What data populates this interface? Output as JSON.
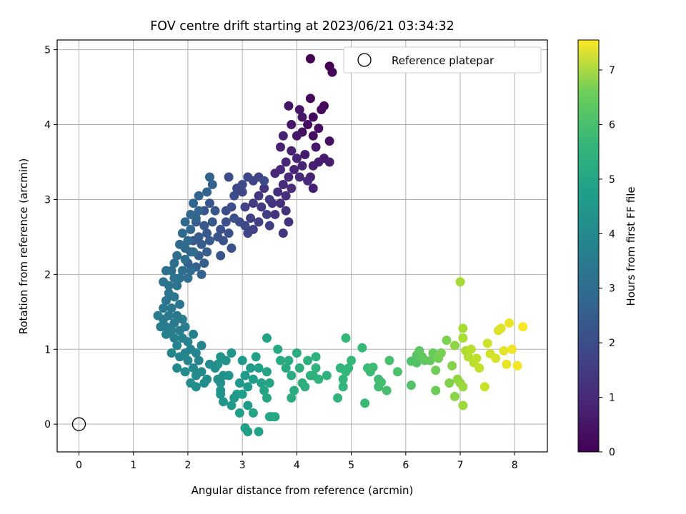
{
  "chart_data": {
    "type": "scatter",
    "title": "FOV centre drift starting at 2023/06/21 03:34:32",
    "xlabel": "Angular distance from reference (arcmin)",
    "ylabel": "Rotation from reference (arcmin)",
    "xlim": [
      -0.4,
      8.6
    ],
    "ylim": [
      -0.37,
      5.13
    ],
    "x_ticks": [
      "0",
      "1",
      "2",
      "3",
      "4",
      "5",
      "6",
      "7",
      "8"
    ],
    "y_ticks": [
      "0",
      "1",
      "2",
      "3",
      "4",
      "5"
    ],
    "grid": true,
    "legend": {
      "placement": "top-right",
      "entries": [
        "Reference platepar"
      ]
    },
    "reference_point": {
      "label": "Reference platepar",
      "x": 0,
      "y": 0
    },
    "colorbar": {
      "label": "Hours from first FF file",
      "colormap": "viridis",
      "range": [
        0,
        7.55
      ],
      "ticks": [
        "0",
        "1",
        "2",
        "3",
        "4",
        "5",
        "6",
        "7"
      ]
    },
    "points": [
      [
        4.25,
        4.88,
        0.0
      ],
      [
        4.6,
        4.78,
        0.03
      ],
      [
        4.65,
        4.7,
        0.07
      ],
      [
        4.25,
        4.35,
        0.12
      ],
      [
        4.5,
        4.25,
        0.15
      ],
      [
        4.45,
        4.2,
        0.18
      ],
      [
        4.3,
        4.1,
        0.2
      ],
      [
        4.2,
        4.0,
        0.25
      ],
      [
        4.4,
        3.95,
        0.28
      ],
      [
        4.1,
        3.9,
        0.3
      ],
      [
        4.3,
        3.85,
        0.32
      ],
      [
        4.6,
        3.78,
        0.35
      ],
      [
        3.85,
        4.25,
        0.4
      ],
      [
        4.05,
        4.2,
        0.42
      ],
      [
        4.1,
        4.1,
        0.45
      ],
      [
        3.9,
        4.0,
        0.48
      ],
      [
        4.0,
        3.85,
        0.5
      ],
      [
        4.35,
        3.7,
        0.52
      ],
      [
        4.15,
        3.6,
        0.55
      ],
      [
        4.5,
        3.55,
        0.57
      ],
      [
        4.6,
        3.5,
        0.6
      ],
      [
        4.4,
        3.5,
        0.62
      ],
      [
        4.3,
        3.45,
        0.64
      ],
      [
        4.25,
        3.3,
        0.66
      ],
      [
        4.3,
        3.15,
        0.68
      ],
      [
        3.75,
        3.85,
        0.7
      ],
      [
        3.7,
        3.7,
        0.72
      ],
      [
        3.9,
        3.65,
        0.74
      ],
      [
        4.0,
        3.55,
        0.76
      ],
      [
        3.8,
        3.5,
        0.78
      ],
      [
        4.1,
        3.45,
        0.8
      ],
      [
        3.95,
        3.4,
        0.82
      ],
      [
        3.7,
        3.4,
        0.84
      ],
      [
        3.6,
        3.35,
        0.86
      ],
      [
        4.05,
        3.3,
        0.88
      ],
      [
        3.85,
        3.3,
        0.9
      ],
      [
        4.2,
        3.25,
        0.92
      ],
      [
        3.75,
        3.2,
        0.94
      ],
      [
        3.9,
        3.15,
        0.96
      ],
      [
        3.65,
        3.1,
        0.98
      ],
      [
        3.8,
        3.05,
        1.0
      ],
      [
        3.7,
        2.95,
        1.03
      ],
      [
        3.55,
        2.95,
        1.06
      ],
      [
        3.8,
        2.85,
        1.09
      ],
      [
        3.6,
        2.8,
        1.12
      ],
      [
        3.85,
        2.7,
        1.15
      ],
      [
        3.75,
        2.55,
        1.18
      ],
      [
        3.4,
        3.15,
        1.2
      ],
      [
        3.3,
        3.05,
        1.25
      ],
      [
        3.5,
        3.0,
        1.28
      ],
      [
        3.35,
        2.9,
        1.3
      ],
      [
        3.2,
        2.95,
        1.33
      ],
      [
        3.45,
        2.8,
        1.36
      ],
      [
        3.3,
        2.7,
        1.4
      ],
      [
        3.5,
        2.65,
        1.43
      ],
      [
        3.2,
        2.6,
        1.45
      ],
      [
        3.15,
        2.75,
        1.48
      ],
      [
        3.05,
        2.9,
        1.5
      ],
      [
        3.1,
        2.55,
        1.53
      ],
      [
        3.3,
        3.3,
        1.55
      ],
      [
        3.2,
        3.25,
        1.58
      ],
      [
        3.0,
        3.1,
        1.6
      ],
      [
        2.9,
        3.15,
        1.63
      ],
      [
        3.1,
        3.3,
        1.65
      ],
      [
        3.05,
        2.65,
        1.68
      ],
      [
        2.95,
        2.7,
        1.7
      ],
      [
        3.4,
        3.25,
        1.72
      ],
      [
        3.0,
        3.2,
        1.74
      ],
      [
        2.75,
        3.3,
        1.76
      ],
      [
        2.85,
        3.05,
        1.78
      ],
      [
        2.8,
        2.9,
        1.8
      ],
      [
        2.7,
        2.85,
        1.82
      ],
      [
        2.85,
        2.75,
        1.84
      ],
      [
        2.7,
        2.7,
        1.86
      ],
      [
        2.6,
        2.6,
        1.88
      ],
      [
        2.75,
        2.55,
        1.9
      ],
      [
        2.55,
        2.5,
        1.92
      ],
      [
        2.65,
        2.45,
        1.94
      ],
      [
        2.8,
        2.35,
        1.96
      ],
      [
        2.6,
        2.25,
        1.98
      ],
      [
        2.4,
        2.95,
        2.0
      ],
      [
        2.5,
        2.85,
        2.02
      ],
      [
        2.3,
        2.85,
        2.04
      ],
      [
        2.45,
        2.7,
        2.06
      ],
      [
        2.3,
        2.65,
        2.08
      ],
      [
        2.15,
        2.7,
        2.1
      ],
      [
        2.35,
        2.55,
        2.12
      ],
      [
        2.2,
        2.5,
        2.14
      ],
      [
        2.4,
        2.45,
        2.16
      ],
      [
        2.25,
        2.4,
        2.18
      ],
      [
        2.1,
        2.45,
        2.2
      ],
      [
        2.35,
        2.3,
        2.22
      ],
      [
        2.2,
        2.25,
        2.24
      ],
      [
        2.05,
        2.3,
        2.26
      ],
      [
        2.3,
        2.15,
        2.28
      ],
      [
        2.15,
        2.1,
        2.3
      ],
      [
        2.0,
        2.15,
        2.32
      ],
      [
        2.25,
        2.0,
        2.34
      ],
      [
        2.4,
        3.3,
        2.36
      ],
      [
        2.45,
        3.2,
        2.38
      ],
      [
        2.35,
        3.1,
        2.4
      ],
      [
        2.2,
        3.05,
        2.42
      ],
      [
        2.1,
        2.95,
        2.44
      ],
      [
        2.2,
        2.85,
        2.46
      ],
      [
        2.05,
        2.8,
        2.48
      ],
      [
        2.15,
        2.75,
        2.5
      ],
      [
        1.95,
        2.7,
        2.52
      ],
      [
        2.05,
        2.6,
        2.54
      ],
      [
        1.9,
        2.55,
        2.56
      ],
      [
        2.0,
        2.45,
        2.58
      ],
      [
        1.85,
        2.4,
        2.6
      ],
      [
        1.95,
        2.35,
        2.62
      ],
      [
        2.1,
        2.3,
        2.64
      ],
      [
        1.8,
        2.25,
        2.66
      ],
      [
        1.95,
        2.2,
        2.68
      ],
      [
        2.05,
        2.05,
        2.7
      ],
      [
        1.75,
        2.15,
        2.72
      ],
      [
        1.9,
        2.05,
        2.74
      ],
      [
        2.0,
        1.95,
        2.76
      ],
      [
        1.7,
        2.05,
        2.78
      ],
      [
        1.85,
        1.95,
        2.8
      ],
      [
        1.6,
        2.05,
        2.82
      ],
      [
        1.75,
        1.95,
        2.84
      ],
      [
        1.65,
        1.85,
        2.86
      ],
      [
        1.8,
        1.85,
        2.88
      ],
      [
        1.55,
        1.9,
        2.9
      ],
      [
        1.65,
        1.75,
        2.92
      ],
      [
        1.75,
        1.7,
        2.94
      ],
      [
        1.6,
        1.65,
        2.96
      ],
      [
        1.85,
        1.6,
        2.98
      ],
      [
        1.7,
        1.55,
        3.0
      ],
      [
        1.55,
        1.55,
        3.02
      ],
      [
        1.65,
        1.45,
        3.04
      ],
      [
        1.8,
        1.45,
        3.06
      ],
      [
        1.55,
        1.4,
        3.08
      ],
      [
        1.75,
        1.35,
        3.1
      ],
      [
        1.9,
        1.4,
        3.12
      ],
      [
        1.6,
        1.3,
        3.14
      ],
      [
        1.45,
        1.45,
        3.16
      ],
      [
        1.7,
        1.25,
        3.18
      ],
      [
        1.85,
        1.25,
        3.2
      ],
      [
        1.5,
        1.3,
        3.22
      ],
      [
        1.95,
        1.3,
        3.24
      ],
      [
        1.75,
        1.15,
        3.26
      ],
      [
        1.6,
        1.2,
        3.28
      ],
      [
        2.1,
        1.2,
        3.3
      ],
      [
        1.9,
        1.15,
        3.32
      ],
      [
        2.0,
        1.1,
        3.34
      ],
      [
        1.8,
        1.05,
        3.36
      ],
      [
        2.05,
        1.0,
        3.38
      ],
      [
        1.95,
        0.95,
        3.4
      ],
      [
        2.15,
        0.95,
        3.42
      ],
      [
        1.7,
        0.95,
        3.44
      ],
      [
        1.85,
        0.9,
        3.46
      ],
      [
        2.25,
        1.05,
        3.48
      ],
      [
        2.0,
        0.85,
        3.5
      ],
      [
        2.2,
        0.85,
        3.52
      ],
      [
        2.1,
        0.75,
        3.54
      ],
      [
        1.8,
        0.75,
        3.56
      ],
      [
        2.25,
        0.7,
        3.58
      ],
      [
        1.95,
        0.7,
        3.6
      ],
      [
        2.15,
        0.65,
        3.62
      ],
      [
        2.35,
        0.6,
        3.64
      ],
      [
        2.15,
        0.5,
        3.66
      ],
      [
        2.05,
        0.55,
        3.68
      ],
      [
        2.3,
        0.55,
        3.7
      ],
      [
        2.4,
        0.8,
        3.72
      ],
      [
        2.5,
        0.75,
        3.74
      ],
      [
        2.55,
        0.6,
        3.76
      ],
      [
        2.6,
        0.55,
        3.78
      ],
      [
        2.65,
        0.65,
        3.8
      ],
      [
        2.55,
        0.8,
        3.82
      ],
      [
        2.7,
        0.85,
        3.84
      ],
      [
        2.6,
        0.9,
        3.86
      ],
      [
        2.75,
        0.65,
        3.88
      ],
      [
        2.6,
        0.45,
        3.9
      ],
      [
        2.6,
        0.4,
        3.92
      ],
      [
        2.65,
        0.3,
        3.94
      ],
      [
        2.8,
        0.95,
        3.96
      ],
      [
        2.85,
        0.35,
        3.98
      ],
      [
        2.9,
        0.4,
        4.0
      ],
      [
        2.8,
        0.25,
        4.02
      ],
      [
        2.95,
        0.55,
        4.04
      ],
      [
        3.0,
        0.85,
        4.06
      ],
      [
        3.05,
        0.65,
        4.08
      ],
      [
        3.1,
        0.5,
        4.1
      ],
      [
        3.15,
        0.75,
        4.12
      ],
      [
        3.1,
        0.25,
        4.14
      ],
      [
        3.2,
        0.6,
        4.16
      ],
      [
        3.0,
        0.4,
        4.18
      ],
      [
        2.95,
        0.15,
        4.2
      ],
      [
        3.05,
        -0.05,
        4.22
      ],
      [
        3.1,
        -0.1,
        4.24
      ],
      [
        3.25,
        0.9,
        4.26
      ],
      [
        3.3,
        0.75,
        4.28
      ],
      [
        3.35,
        0.55,
        4.3
      ],
      [
        3.3,
        -0.1,
        4.32
      ],
      [
        3.2,
        0.15,
        4.34
      ],
      [
        3.45,
        1.15,
        4.36
      ],
      [
        3.45,
        0.7,
        4.38
      ],
      [
        3.4,
        0.45,
        4.4
      ],
      [
        3.5,
        0.55,
        4.42
      ],
      [
        3.45,
        0.35,
        4.44
      ],
      [
        3.5,
        0.1,
        4.46
      ],
      [
        3.55,
        0.1,
        4.48
      ],
      [
        3.6,
        0.1,
        4.5
      ],
      [
        3.65,
        1.0,
        4.52
      ],
      [
        3.7,
        0.85,
        4.55
      ],
      [
        3.8,
        0.75,
        4.58
      ],
      [
        3.85,
        0.85,
        4.6
      ],
      [
        3.9,
        0.65,
        4.62
      ],
      [
        3.9,
        0.35,
        4.64
      ],
      [
        3.95,
        0.45,
        4.66
      ],
      [
        4.0,
        0.95,
        4.68
      ],
      [
        4.05,
        0.75,
        4.7
      ],
      [
        4.1,
        0.55,
        4.72
      ],
      [
        4.15,
        0.5,
        4.74
      ],
      [
        4.2,
        0.85,
        4.76
      ],
      [
        4.25,
        0.65,
        4.78
      ],
      [
        4.3,
        0.65,
        4.8
      ],
      [
        4.35,
        0.9,
        4.82
      ],
      [
        4.35,
        0.75,
        4.84
      ],
      [
        4.4,
        0.6,
        4.86
      ],
      [
        4.55,
        0.65,
        4.88
      ],
      [
        4.75,
        0.35,
        4.9
      ],
      [
        4.8,
        0.75,
        4.92
      ],
      [
        4.85,
        0.5,
        4.94
      ],
      [
        4.85,
        0.6,
        4.96
      ],
      [
        4.9,
        0.7,
        4.98
      ],
      [
        4.95,
        0.75,
        5.0
      ],
      [
        4.9,
        1.15,
        5.02
      ],
      [
        5.0,
        0.85,
        5.05
      ],
      [
        5.2,
        1.02,
        5.08
      ],
      [
        5.25,
        0.28,
        5.1
      ],
      [
        5.3,
        0.75,
        5.12
      ],
      [
        5.35,
        0.7,
        5.15
      ],
      [
        5.4,
        0.76,
        5.18
      ],
      [
        5.5,
        0.6,
        5.2
      ],
      [
        5.5,
        0.5,
        5.23
      ],
      [
        5.55,
        0.56,
        5.26
      ],
      [
        5.65,
        0.45,
        5.3
      ],
      [
        5.7,
        0.85,
        5.33
      ],
      [
        5.85,
        0.7,
        5.36
      ],
      [
        6.1,
        0.84,
        5.4
      ],
      [
        6.1,
        0.52,
        5.45
      ],
      [
        6.2,
        0.82,
        5.5
      ],
      [
        6.2,
        0.92,
        5.55
      ],
      [
        6.25,
        0.98,
        5.6
      ],
      [
        6.3,
        0.9,
        5.65
      ],
      [
        6.35,
        0.85,
        5.7
      ],
      [
        6.45,
        0.85,
        5.75
      ],
      [
        6.5,
        0.95,
        5.8
      ],
      [
        6.55,
        0.45,
        5.85
      ],
      [
        6.55,
        0.72,
        5.9
      ],
      [
        6.6,
        0.88,
        5.95
      ],
      [
        6.65,
        0.95,
        6.0
      ],
      [
        6.75,
        1.12,
        6.05
      ],
      [
        6.8,
        0.55,
        6.1
      ],
      [
        6.85,
        0.78,
        6.15
      ],
      [
        6.9,
        0.37,
        6.2
      ],
      [
        6.9,
        1.05,
        6.25
      ],
      [
        6.95,
        0.6,
        6.3
      ],
      [
        7.0,
        0.55,
        6.35
      ],
      [
        7.05,
        0.5,
        6.4
      ],
      [
        7.05,
        0.25,
        6.45
      ],
      [
        7.0,
        1.9,
        6.5
      ],
      [
        7.05,
        1.28,
        6.55
      ],
      [
        7.05,
        1.15,
        6.6
      ],
      [
        7.1,
        0.98,
        6.65
      ],
      [
        7.15,
        0.9,
        6.7
      ],
      [
        7.2,
        1.0,
        6.75
      ],
      [
        7.25,
        0.82,
        6.8
      ],
      [
        7.3,
        0.88,
        6.85
      ],
      [
        7.35,
        0.75,
        6.9
      ],
      [
        7.45,
        0.5,
        6.95
      ],
      [
        7.5,
        1.08,
        7.0
      ],
      [
        7.55,
        0.94,
        7.05
      ],
      [
        7.65,
        0.88,
        7.1
      ],
      [
        7.7,
        1.25,
        7.15
      ],
      [
        7.75,
        1.28,
        7.2
      ],
      [
        7.8,
        0.98,
        7.25
      ],
      [
        7.85,
        0.8,
        7.3
      ],
      [
        7.9,
        1.35,
        7.35
      ],
      [
        7.95,
        1.0,
        7.4
      ],
      [
        8.05,
        0.78,
        7.45
      ],
      [
        8.15,
        1.3,
        7.5
      ]
    ]
  }
}
